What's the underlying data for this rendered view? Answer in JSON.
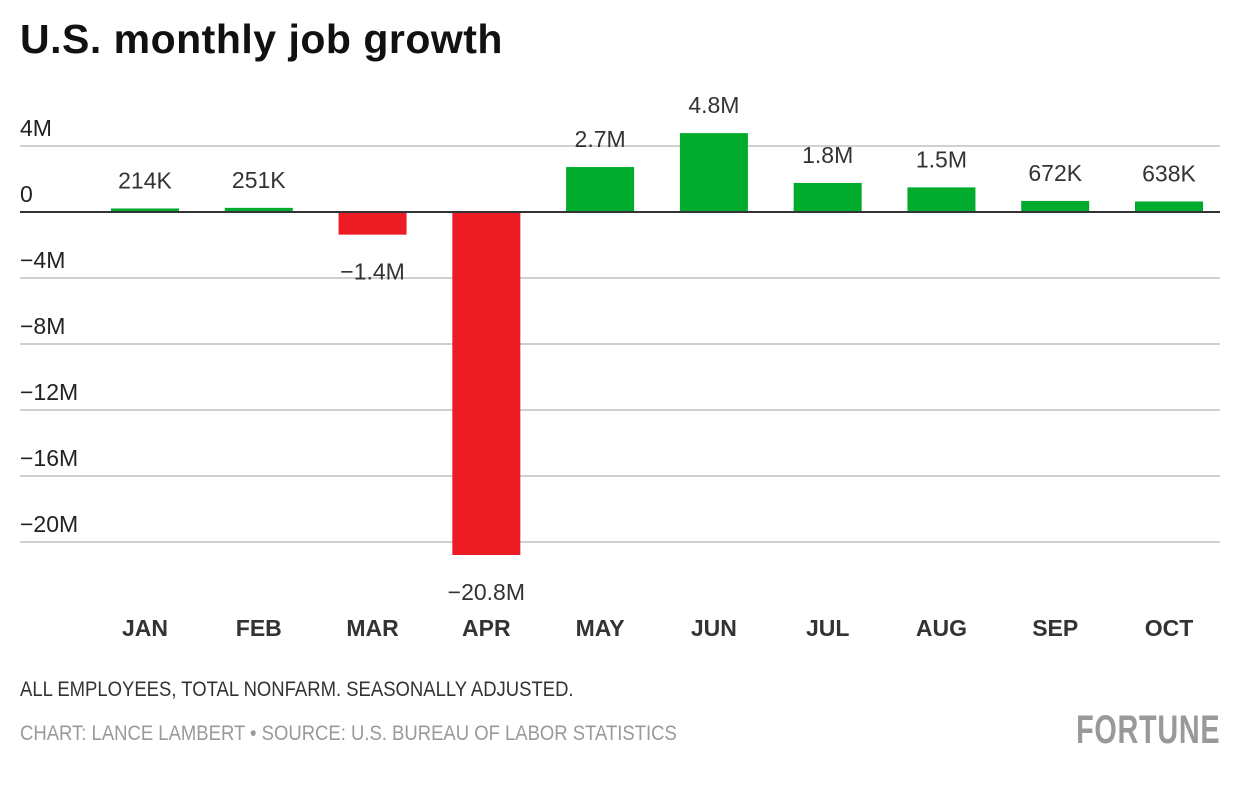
{
  "chart_data": {
    "type": "bar",
    "title": "U.S. monthly job growth",
    "categories": [
      "JAN",
      "FEB",
      "MAR",
      "APR",
      "MAY",
      "JUN",
      "JUL",
      "AUG",
      "SEP",
      "OCT"
    ],
    "values": [
      0.214,
      0.251,
      -1.373,
      -20.787,
      2.725,
      4.781,
      1.761,
      1.493,
      0.672,
      0.638
    ],
    "value_unit": "millions of jobs",
    "data_labels": [
      "214K",
      "251K",
      "−1.4M",
      "−20.8M",
      "2.7M",
      "4.8M",
      "1.8M",
      "1.5M",
      "672K",
      "638K"
    ],
    "yticks": [
      4,
      0,
      -4,
      -8,
      -12,
      -16,
      -20
    ],
    "ytick_labels": [
      "4M",
      "0",
      "−4M",
      "−8M",
      "−12M",
      "−16M",
      "−20M"
    ],
    "ylim": [
      -21.5,
      5
    ],
    "grid": true,
    "colors": {
      "positive": "#00ab2e",
      "negative": "#ed1c24",
      "grid": "#d0d0d0",
      "zero_line": "#333333"
    },
    "note": "ALL EMPLOYEES, TOTAL NONFARM. SEASONALLY ADJUSTED.",
    "source": "CHART: LANCE LAMBERT • SOURCE: U.S. BUREAU OF LABOR STATISTICS"
  },
  "logo": "FORTUNE"
}
